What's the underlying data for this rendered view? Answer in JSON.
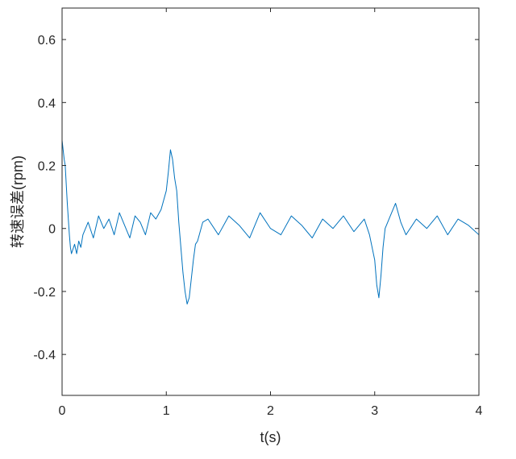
{
  "chart_data": {
    "type": "line",
    "title": "",
    "xlabel": "t(s)",
    "ylabel": "转速误差(rpm)",
    "xlim": [
      0,
      4
    ],
    "ylim": [
      -0.53,
      0.7
    ],
    "xticks": [
      0,
      1,
      2,
      3,
      4
    ],
    "xtick_labels": [
      "0",
      "1",
      "2",
      "3",
      "4"
    ],
    "yticks": [
      -0.4,
      -0.2,
      0,
      0.2,
      0.4,
      0.6
    ],
    "ytick_labels": [
      "-0.4",
      "-0.2",
      "0",
      "0.2",
      "0.4",
      "0.6"
    ],
    "grid": false,
    "legend": "none",
    "line_color": "#0072BD",
    "series": [
      {
        "x": [
          0.0,
          0.01,
          0.02,
          0.03,
          0.04,
          0.05,
          0.06,
          0.07,
          0.08,
          0.09,
          0.1,
          0.12,
          0.14,
          0.16,
          0.18,
          0.2,
          0.25,
          0.3,
          0.35,
          0.4,
          0.45,
          0.5,
          0.55,
          0.6,
          0.65,
          0.7,
          0.75,
          0.8,
          0.85,
          0.9,
          0.95,
          1.0,
          1.02,
          1.04,
          1.06,
          1.08,
          1.1,
          1.12,
          1.14,
          1.16,
          1.18,
          1.2,
          1.22,
          1.24,
          1.26,
          1.28,
          1.3,
          1.35,
          1.4,
          1.5,
          1.6,
          1.7,
          1.8,
          1.9,
          2.0,
          2.1,
          2.2,
          2.3,
          2.4,
          2.5,
          2.6,
          2.7,
          2.8,
          2.9,
          2.95,
          3.0,
          3.02,
          3.04,
          3.06,
          3.08,
          3.1,
          3.15,
          3.2,
          3.25,
          3.3,
          3.4,
          3.5,
          3.6,
          3.7,
          3.8,
          3.9,
          4.0
        ],
        "values": [
          0.28,
          0.25,
          0.22,
          0.2,
          0.14,
          0.08,
          0.03,
          -0.02,
          -0.06,
          -0.08,
          -0.07,
          -0.05,
          -0.08,
          -0.04,
          -0.06,
          -0.02,
          0.02,
          -0.03,
          0.04,
          0.0,
          0.03,
          -0.02,
          0.05,
          0.01,
          -0.03,
          0.04,
          0.02,
          -0.02,
          0.05,
          0.03,
          0.06,
          0.12,
          0.18,
          0.25,
          0.22,
          0.16,
          0.12,
          0.02,
          -0.06,
          -0.14,
          -0.2,
          -0.24,
          -0.22,
          -0.16,
          -0.1,
          -0.05,
          -0.04,
          0.02,
          0.03,
          -0.02,
          0.04,
          0.01,
          -0.03,
          0.05,
          0.0,
          -0.02,
          0.04,
          0.01,
          -0.03,
          0.03,
          0.0,
          0.04,
          -0.01,
          0.03,
          -0.02,
          -0.1,
          -0.18,
          -0.22,
          -0.15,
          -0.06,
          0.0,
          0.04,
          0.08,
          0.02,
          -0.02,
          0.03,
          0.0,
          0.04,
          -0.02,
          0.03,
          0.01,
          -0.02
        ]
      }
    ]
  }
}
